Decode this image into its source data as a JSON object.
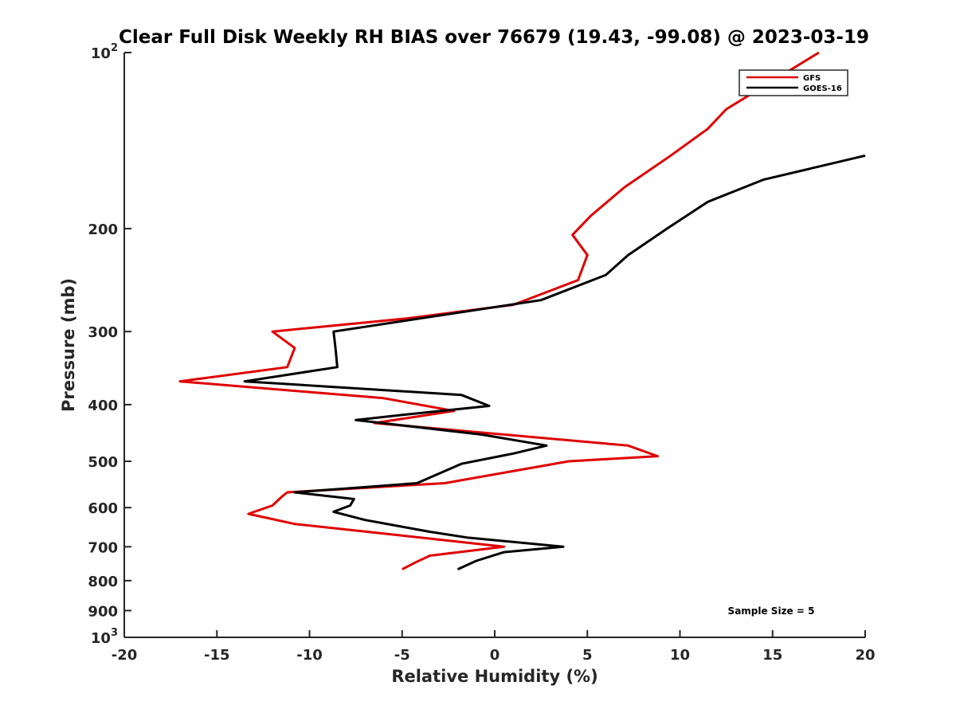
{
  "chart_data": {
    "type": "line",
    "title": "Clear Full Disk Weekly RH BIAS over 76679 (19.43, -99.08) @ 2023-03-19",
    "xlabel": "Relative Humidity (%)",
    "ylabel": "Pressure (mb)",
    "xlim": [
      -20,
      20
    ],
    "ylim": [
      1000,
      100
    ],
    "yscale": "log",
    "y_reversed": true,
    "grid": false,
    "legend_position": "top-right",
    "x_ticks": [
      -20,
      -15,
      -10,
      -5,
      0,
      5,
      10,
      15,
      20
    ],
    "x_tick_labels": [
      "-20",
      "-15",
      "-10",
      "-5",
      "0",
      "5",
      "10",
      "15",
      "20"
    ],
    "y_ticks": [
      {
        "value": 100,
        "base": "10",
        "exp": "2"
      },
      {
        "value": 200,
        "label": "200"
      },
      {
        "value": 300,
        "label": "300"
      },
      {
        "value": 400,
        "label": "400"
      },
      {
        "value": 500,
        "label": "500"
      },
      {
        "value": 600,
        "label": "600"
      },
      {
        "value": 700,
        "label": "700"
      },
      {
        "value": 800,
        "label": "800"
      },
      {
        "value": 900,
        "label": "900"
      },
      {
        "value": 1000,
        "base": "10",
        "exp": "3"
      }
    ],
    "series": [
      {
        "name": "GFS",
        "color": "#e00000",
        "x": [
          17.5,
          12.5,
          11.5,
          9.5,
          7,
          5.2,
          4.2,
          5,
          4.5,
          1,
          -4.8,
          -12,
          -10.8,
          -11.2,
          -17,
          -6,
          -2.2,
          -6.5,
          7.2,
          8.8,
          4,
          -2.7,
          -11.2,
          -11.5,
          -12,
          -13.3,
          -10.8,
          -5,
          0.5,
          -3.5,
          -4.3,
          -5
        ],
        "y": [
          100,
          125,
          135,
          150,
          170,
          190,
          205,
          222,
          245,
          270,
          285,
          300,
          320,
          345,
          365,
          390,
          410,
          430,
          470,
          490,
          500,
          545,
          565,
          575,
          595,
          615,
          640,
          670,
          700,
          725,
          745,
          765
        ]
      },
      {
        "name": "GOES-16",
        "color": "#000000",
        "x": [
          20,
          14.5,
          11.5,
          9.3,
          7.2,
          6,
          2.5,
          -8.7,
          -8.6,
          -8.5,
          -13.5,
          -1.8,
          -0.3,
          -4.5,
          -7.5,
          -0.7,
          2.8,
          1,
          -1.8,
          -4.2,
          -10.8,
          -7.6,
          -7.8,
          -8.7,
          -7,
          -3.5,
          -1.5,
          3.7,
          0.5,
          -1,
          -2
        ],
        "y": [
          150,
          165,
          180,
          200,
          222,
          240,
          265,
          300,
          320,
          345,
          365,
          385,
          402,
          415,
          425,
          450,
          470,
          485,
          505,
          545,
          565,
          580,
          595,
          610,
          630,
          660,
          675,
          700,
          715,
          740,
          765
        ]
      }
    ],
    "annotations": [
      "Sample Size = 5"
    ]
  }
}
